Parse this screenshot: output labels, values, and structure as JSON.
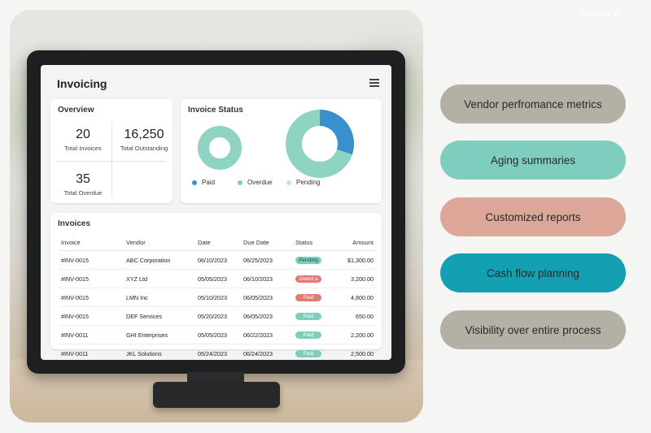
{
  "brand": "envoice",
  "colors": {
    "paid": "#7fcdbb",
    "overdue": "#e07a72",
    "pending": "#8fd3c3",
    "donut_blue": "#3a8fcf"
  },
  "app": {
    "title": "Invoicing",
    "menu_icon": "hamburger-icon"
  },
  "overview": {
    "title": "Overview",
    "metrics": [
      {
        "value": "20",
        "label": "Total Invoices"
      },
      {
        "value": "16,250",
        "label": "Total Outstanding"
      },
      {
        "value": "35",
        "label": "Total Overdue"
      }
    ]
  },
  "invoice_status": {
    "title": "Invoice Status",
    "legend": [
      {
        "label": "Paid",
        "color": "#3a8fcf"
      },
      {
        "label": "Overdue",
        "color": "#7fcdbb"
      },
      {
        "label": "Pending",
        "color": "#bfe6dd"
      }
    ]
  },
  "invoices": {
    "title": "Invoices",
    "columns": [
      "Invoice",
      "Vendor",
      "Date",
      "Due Date",
      "Status",
      "Amount"
    ],
    "rows": [
      {
        "invoice": "#INV-0015",
        "vendor": "ABC Corporation",
        "date": "06/10/2023",
        "due": "06/25/2023",
        "status": "Pending",
        "status_color": "#7fcdbb",
        "status_text_color": "#1f4d44",
        "amount": "$1,300.00"
      },
      {
        "invoice": "#INV-0015",
        "vendor": "XYZ Ltd",
        "date": "05/05/2023",
        "due": "06/10/2023",
        "status": "Overd a",
        "status_color": "#e07a72",
        "status_text_color": "#ffffff",
        "amount": "3,200.00"
      },
      {
        "invoice": "#INV-0015",
        "vendor": "LMN Inc",
        "date": "05/10/2023",
        "due": "06/05/2023",
        "status": "Paid",
        "status_color": "#e07a72",
        "status_text_color": "#ffffff",
        "amount": "4,800.00"
      },
      {
        "invoice": "#INV-0015",
        "vendor": "DEF Services",
        "date": "05/20/2023",
        "due": "06/05/2023",
        "status": "Paid",
        "status_color": "#7fcdbb",
        "status_text_color": "#ffffff",
        "amount": "650.00"
      },
      {
        "invoice": "#INV-0011",
        "vendor": "GHI Enterprises",
        "date": "05/05/2023",
        "due": "06/22/2023",
        "status": "Paid",
        "status_color": "#7fcdbb",
        "status_text_color": "#ffffff",
        "amount": "2,200.00"
      },
      {
        "invoice": "#INV-0011",
        "vendor": "JKL Solutions",
        "date": "05/24/2023",
        "due": "06/24/2023",
        "status": "Paid",
        "status_color": "#7fcdbb",
        "status_text_color": "#ffffff",
        "amount": "2,500.00"
      }
    ]
  },
  "features": [
    {
      "label": "Vendor perfromance metrics",
      "color": "#b5b0a6"
    },
    {
      "label": "Aging summaries",
      "color": "#7ecdbf"
    },
    {
      "label": "Customized reports",
      "color": "#dca698"
    },
    {
      "label": "Cash flow planning",
      "color": "#13a0b2"
    },
    {
      "label": "Visibility over entire process",
      "color": "#b5b0a6"
    }
  ]
}
